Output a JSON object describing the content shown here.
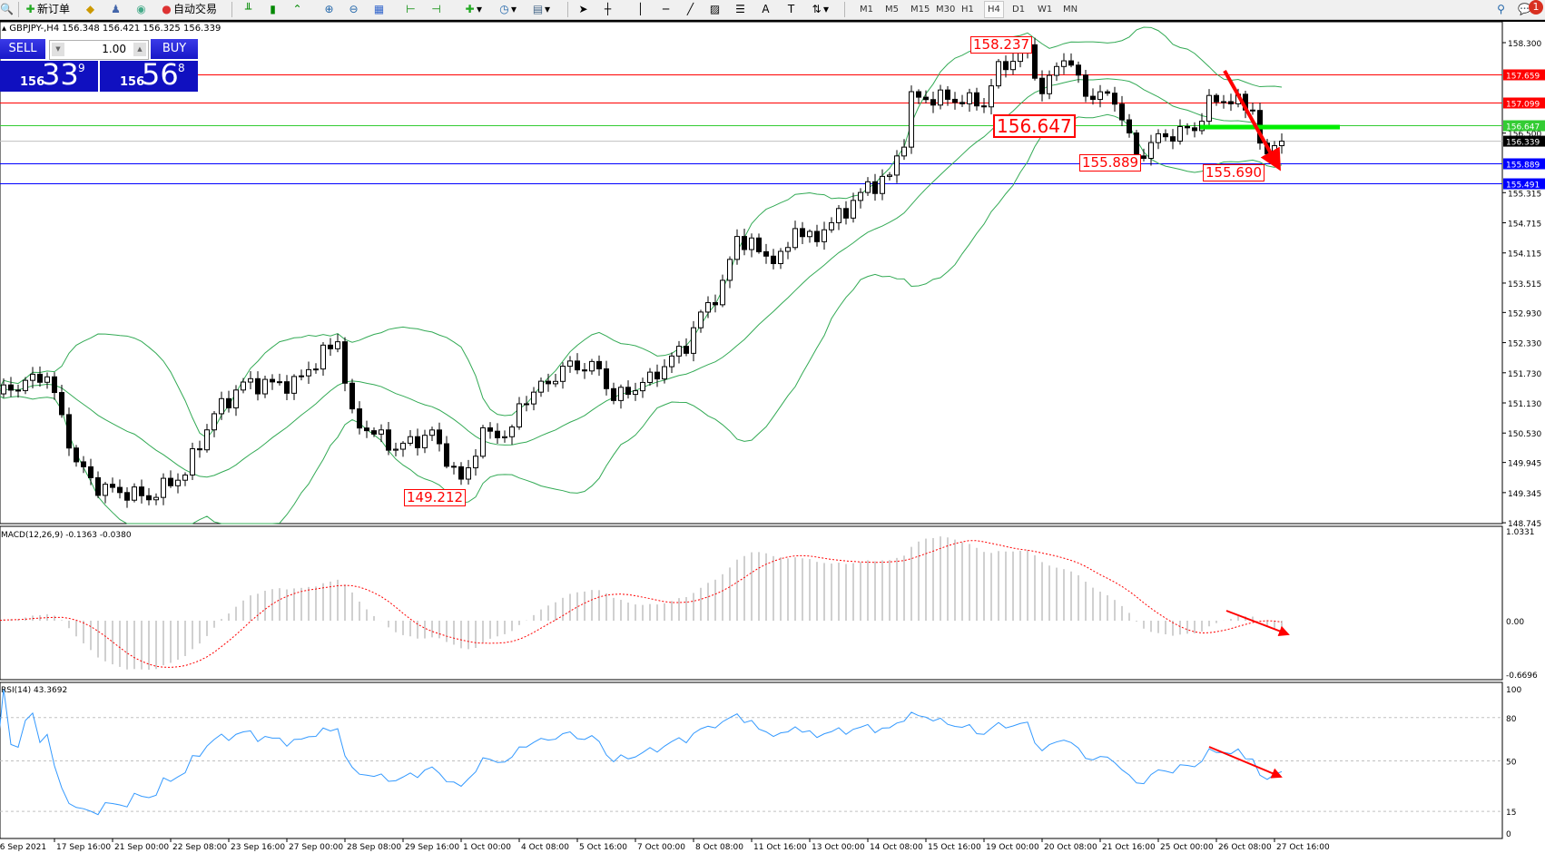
{
  "toolbar": {
    "new_order_label": "新订单",
    "auto_trading_label": "自动交易",
    "timeframes": [
      "M1",
      "M5",
      "M15",
      "M30",
      "H1",
      "H4",
      "D1",
      "W1",
      "MN"
    ],
    "active_timeframe": "H4",
    "notification_count": "1"
  },
  "chart_header": {
    "symbol_line": "GBPJPY-,H4  156.348 156.421 156.325 156.339"
  },
  "trade_panel": {
    "sell_label": "SELL",
    "buy_label": "BUY",
    "lot_value": "1.00",
    "sell_prefix": "156",
    "sell_big": "33",
    "sell_pip": "9",
    "buy_prefix": "156",
    "buy_big": "56",
    "buy_pip": "8",
    "color": "#1010c0"
  },
  "annotations": [
    {
      "text": "158.237",
      "price": 158.237
    },
    {
      "text": "156.647",
      "price": 156.647
    },
    {
      "text": "155.889",
      "price": 155.889
    },
    {
      "text": "155.690",
      "price": 155.69
    },
    {
      "text": "149.212",
      "price": 149.212
    }
  ],
  "price_levels": [
    {
      "price": 157.659,
      "label": "157.659",
      "color": "#ff0000"
    },
    {
      "price": 157.099,
      "label": "157.099",
      "color": "#ff0000"
    },
    {
      "price": 156.647,
      "label": "156.647",
      "color": "#33cc33"
    },
    {
      "price": 156.339,
      "label": "156.339",
      "color": "#000000",
      "line_color": "#c0c0c0"
    },
    {
      "price": 155.889,
      "label": "155.889",
      "color": "#0000ff"
    },
    {
      "price": 155.491,
      "label": "155.491",
      "color": "#0000ff"
    }
  ],
  "price_axis_ticks": [
    "158.300",
    "156.500",
    "155.315",
    "154.715",
    "154.115",
    "153.515",
    "152.930",
    "152.330",
    "151.730",
    "151.130",
    "150.530",
    "149.945",
    "149.345",
    "148.745"
  ],
  "macd": {
    "label": "MACD(12,26,9) -0.1363 -0.0380",
    "ticks": [
      "1.0331",
      "0.00",
      "-0.6696"
    ],
    "range": [
      -0.6696,
      1.0331
    ],
    "signal_color": "#ff0000",
    "hist_color": "#c0c0c0"
  },
  "rsi": {
    "label": "RSI(14) 43.3692",
    "ticks": [
      "100",
      "80",
      "50",
      "15",
      "0"
    ],
    "levels": [
      80,
      50,
      15
    ],
    "line_color": "#3399ff"
  },
  "time_axis": [
    "16 Sep 2021",
    "17 Sep 16:00",
    "21 Sep 00:00",
    "22 Sep 08:00",
    "23 Sep 16:00",
    "27 Sep 00:00",
    "28 Sep 08:00",
    "29 Sep 16:00",
    "1 Oct 00:00",
    "4 Oct 08:00",
    "5 Oct 16:00",
    "7 Oct 00:00",
    "8 Oct 08:00",
    "11 Oct 16:00",
    "13 Oct 00:00",
    "14 Oct 08:00",
    "15 Oct 16:00",
    "19 Oct 00:00",
    "20 Oct 08:00",
    "21 Oct 16:00",
    "25 Oct 00:00",
    "26 Oct 08:00",
    "27 Oct 16:00"
  ],
  "chart_data": {
    "type": "candlestick",
    "symbol": "GBPJPY-",
    "timeframe": "H4",
    "ylim": [
      148.745,
      158.3
    ],
    "bollinger_color": "#33aa55",
    "close_anchors": [
      [
        0,
        151.31
      ],
      [
        7,
        151.7
      ],
      [
        11,
        149.94
      ],
      [
        14,
        149.45
      ],
      [
        21,
        149.25
      ],
      [
        26,
        149.74
      ],
      [
        30,
        150.91
      ],
      [
        34,
        151.51
      ],
      [
        41,
        151.51
      ],
      [
        47,
        152.39
      ],
      [
        49,
        150.82
      ],
      [
        55,
        150.23
      ],
      [
        60,
        150.52
      ],
      [
        64,
        149.54
      ],
      [
        67,
        150.52
      ],
      [
        71,
        150.52
      ],
      [
        72,
        151.11
      ],
      [
        79,
        151.89
      ],
      [
        83,
        151.8
      ],
      [
        85,
        151.21
      ],
      [
        90,
        151.6
      ],
      [
        95,
        152.29
      ],
      [
        97,
        152.88
      ],
      [
        100,
        153.46
      ],
      [
        102,
        154.44
      ],
      [
        105,
        154.15
      ],
      [
        108,
        153.95
      ],
      [
        110,
        154.64
      ],
      [
        112,
        154.35
      ],
      [
        116,
        154.84
      ],
      [
        120,
        155.43
      ],
      [
        123,
        155.62
      ],
      [
        125,
        156.4
      ],
      [
        126,
        157.19
      ],
      [
        131,
        157.19
      ],
      [
        136,
        157.09
      ],
      [
        138,
        157.78
      ],
      [
        142,
        158.17
      ],
      [
        144,
        157.29
      ],
      [
        147,
        158.07
      ],
      [
        150,
        157.29
      ],
      [
        154,
        157.19
      ],
      [
        157,
        156.01
      ],
      [
        160,
        156.4
      ],
      [
        165,
        156.6
      ],
      [
        167,
        157.09
      ],
      [
        169,
        157.19
      ],
      [
        173,
        157.0
      ],
      [
        174,
        156.31
      ],
      [
        175,
        155.92
      ],
      [
        176,
        156.4
      ],
      [
        177,
        156.339
      ]
    ],
    "highlight_zone": {
      "price": 156.647,
      "color": "#00ee00"
    },
    "arrow_color": "#ff0000"
  }
}
